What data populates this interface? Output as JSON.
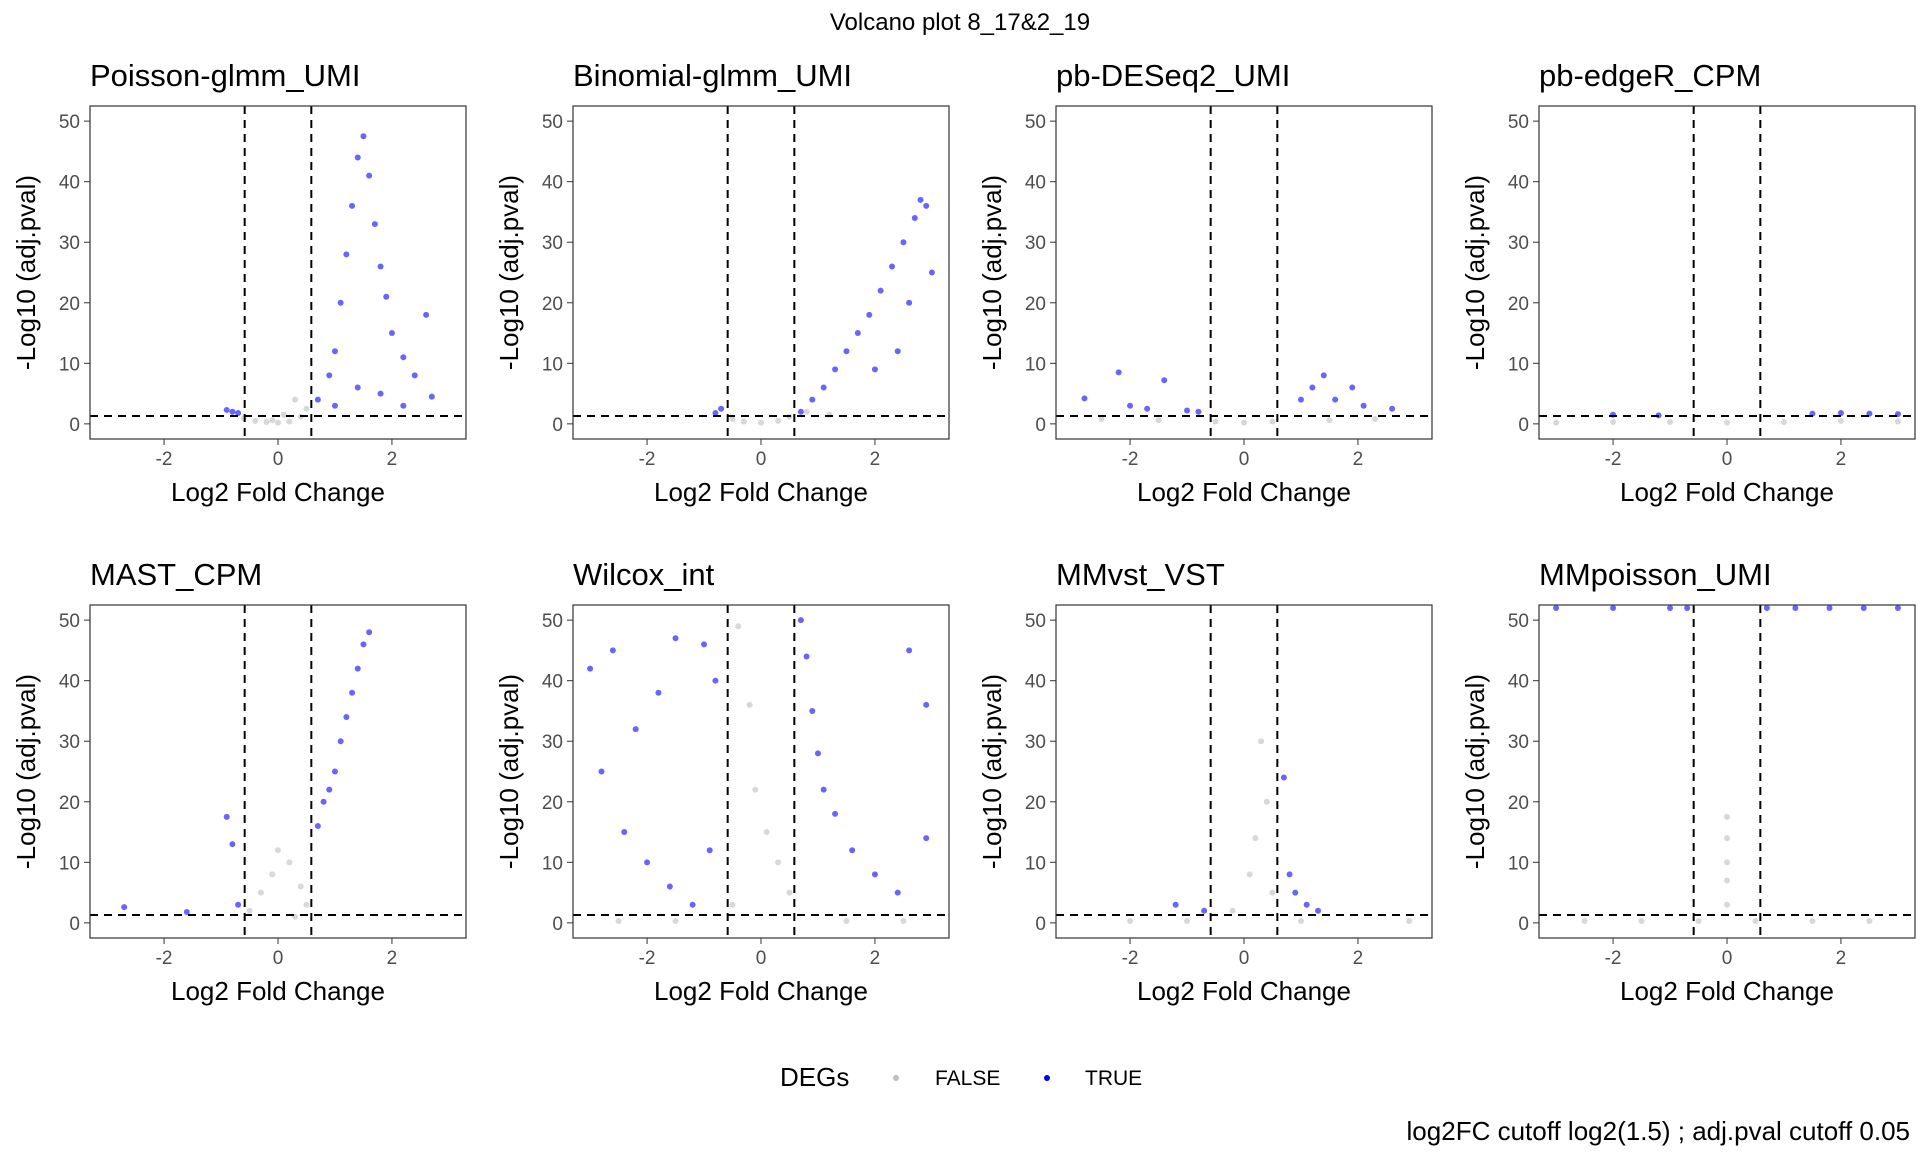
{
  "figure": {
    "title": "Volcano plot 8_17&2_19",
    "caption": "log2FC cutoff  log2(1.5) ; adj.pval cutoff 0.05"
  },
  "legend": {
    "title": "DEGs",
    "entries": [
      {
        "label": "FALSE",
        "color": "#bebebe"
      },
      {
        "label": "TRUE",
        "color": "#0000ff"
      }
    ],
    "placement": "bottom-center"
  },
  "chart_data": [
    {
      "type": "scatter",
      "title": "Poisson-glmm_UMI",
      "xlabel": "Log2 Fold Change",
      "ylabel": "-Log10 (adj.pval)",
      "xlim": [
        -3.3,
        3.3
      ],
      "ylim": [
        -2.5,
        52.5
      ],
      "x_ticks": [
        -2,
        0,
        2
      ],
      "y_ticks": [
        0,
        10,
        20,
        30,
        40,
        50
      ],
      "cutoffs": {
        "log2fc": [
          -0.585,
          0.585
        ],
        "neg_log10_pval": 1.3
      },
      "grid": false,
      "series": [
        {
          "name": "FALSE",
          "color": "#bebebe",
          "points": [
            [
              -0.6,
              0.9
            ],
            [
              -0.4,
              0.5
            ],
            [
              -0.2,
              0.3
            ],
            [
              0,
              0.2
            ],
            [
              0.2,
              0.4
            ],
            [
              0.4,
              1.2
            ],
            [
              0.5,
              2.5
            ],
            [
              0.3,
              4
            ],
            [
              0.1,
              1.5
            ],
            [
              -0.1,
              0.6
            ]
          ]
        },
        {
          "name": "TRUE",
          "color": "#0000ff",
          "points": [
            [
              -0.9,
              2.3
            ],
            [
              -0.8,
              2
            ],
            [
              -0.7,
              1.8
            ],
            [
              0.7,
              4
            ],
            [
              0.9,
              8
            ],
            [
              1.0,
              12
            ],
            [
              1.1,
              20
            ],
            [
              1.2,
              28
            ],
            [
              1.3,
              36
            ],
            [
              1.4,
              44
            ],
            [
              1.5,
              47.5
            ],
            [
              1.6,
              41
            ],
            [
              1.7,
              33
            ],
            [
              1.8,
              26
            ],
            [
              1.9,
              21
            ],
            [
              2.0,
              15
            ],
            [
              2.2,
              11
            ],
            [
              2.4,
              8
            ],
            [
              2.6,
              18
            ],
            [
              2.7,
              4.5
            ],
            [
              1.0,
              3
            ],
            [
              1.4,
              6
            ],
            [
              1.8,
              5
            ],
            [
              2.2,
              3
            ]
          ]
        }
      ]
    },
    {
      "type": "scatter",
      "title": "Binomial-glmm_UMI",
      "xlabel": "Log2 Fold Change",
      "ylabel": "-Log10 (adj.pval)",
      "xlim": [
        -3.3,
        3.3
      ],
      "ylim": [
        -2.5,
        52.5
      ],
      "x_ticks": [
        -2,
        0,
        2
      ],
      "y_ticks": [
        0,
        10,
        20,
        30,
        40,
        50
      ],
      "cutoffs": {
        "log2fc": [
          -0.585,
          0.585
        ],
        "neg_log10_pval": 1.3
      },
      "grid": false,
      "series": [
        {
          "name": "FALSE",
          "color": "#bebebe",
          "points": [
            [
              -0.5,
              0.8
            ],
            [
              -0.3,
              0.4
            ],
            [
              0,
              0.2
            ],
            [
              0.3,
              0.5
            ],
            [
              0.5,
              1.2
            ],
            [
              0.8,
              2
            ],
            [
              1.2,
              1.5
            ]
          ]
        },
        {
          "name": "TRUE",
          "color": "#0000ff",
          "points": [
            [
              -0.7,
              2.5
            ],
            [
              -0.8,
              1.8
            ],
            [
              0.7,
              2
            ],
            [
              0.9,
              4
            ],
            [
              1.1,
              6
            ],
            [
              1.3,
              9
            ],
            [
              1.5,
              12
            ],
            [
              1.7,
              15
            ],
            [
              1.9,
              18
            ],
            [
              2.1,
              22
            ],
            [
              2.3,
              26
            ],
            [
              2.5,
              30
            ],
            [
              2.7,
              34
            ],
            [
              2.8,
              37
            ],
            [
              2.9,
              36
            ],
            [
              3.0,
              25
            ],
            [
              2.0,
              9
            ],
            [
              2.4,
              12
            ],
            [
              2.6,
              20
            ]
          ]
        }
      ]
    },
    {
      "type": "scatter",
      "title": "pb-DESeq2_UMI",
      "xlabel": "Log2 Fold Change",
      "ylabel": "-Log10 (adj.pval)",
      "xlim": [
        -3.3,
        3.3
      ],
      "ylim": [
        -2.5,
        52.5
      ],
      "x_ticks": [
        -2,
        0,
        2
      ],
      "y_ticks": [
        0,
        10,
        20,
        30,
        40,
        50
      ],
      "cutoffs": {
        "log2fc": [
          -0.585,
          0.585
        ],
        "neg_log10_pval": 1.3
      },
      "grid": false,
      "series": [
        {
          "name": "FALSE",
          "color": "#bebebe",
          "points": [
            [
              -2.5,
              0.8
            ],
            [
              -1.5,
              0.6
            ],
            [
              -0.5,
              0.4
            ],
            [
              0,
              0.2
            ],
            [
              0.5,
              0.4
            ],
            [
              1.5,
              0.6
            ],
            [
              2.3,
              0.8
            ]
          ]
        },
        {
          "name": "TRUE",
          "color": "#0000ff",
          "points": [
            [
              -2.8,
              4.2
            ],
            [
              -2.2,
              8.5
            ],
            [
              -2.0,
              3
            ],
            [
              -1.7,
              2.5
            ],
            [
              -1.4,
              7.2
            ],
            [
              -1.0,
              2.2
            ],
            [
              -0.8,
              2
            ],
            [
              1.0,
              4
            ],
            [
              1.2,
              6
            ],
            [
              1.4,
              8
            ],
            [
              1.6,
              4
            ],
            [
              1.9,
              6
            ],
            [
              2.1,
              3
            ],
            [
              2.6,
              2.5
            ]
          ]
        }
      ]
    },
    {
      "type": "scatter",
      "title": "pb-edgeR_CPM",
      "xlabel": "Log2 Fold Change",
      "ylabel": "-Log10 (adj.pval)",
      "xlim": [
        -3.3,
        3.3
      ],
      "ylim": [
        -2.5,
        52.5
      ],
      "x_ticks": [
        -2,
        0,
        2
      ],
      "y_ticks": [
        0,
        10,
        20,
        30,
        40,
        50
      ],
      "cutoffs": {
        "log2fc": [
          -0.585,
          0.585
        ],
        "neg_log10_pval": 1.3
      },
      "grid": false,
      "series": [
        {
          "name": "FALSE",
          "color": "#bebebe",
          "points": [
            [
              -3,
              0.2
            ],
            [
              -2,
              0.3
            ],
            [
              -1,
              0.3
            ],
            [
              0,
              0.2
            ],
            [
              1,
              0.3
            ],
            [
              2,
              0.5
            ],
            [
              3,
              0.4
            ]
          ]
        },
        {
          "name": "TRUE",
          "color": "#0000ff",
          "points": [
            [
              -2.0,
              1.5
            ],
            [
              -1.2,
              1.4
            ],
            [
              1.5,
              1.7
            ],
            [
              2.0,
              1.8
            ],
            [
              2.5,
              1.7
            ],
            [
              3.0,
              1.6
            ]
          ]
        }
      ]
    },
    {
      "type": "scatter",
      "title": "MAST_CPM",
      "xlabel": "Log2 Fold Change",
      "ylabel": "-Log10 (adj.pval)",
      "xlim": [
        -3.3,
        3.3
      ],
      "ylim": [
        -2.5,
        52.5
      ],
      "x_ticks": [
        -2,
        0,
        2
      ],
      "y_ticks": [
        0,
        10,
        20,
        30,
        40,
        50
      ],
      "cutoffs": {
        "log2fc": [
          -0.585,
          0.585
        ],
        "neg_log10_pval": 1.3
      },
      "grid": false,
      "series": [
        {
          "name": "FALSE",
          "color": "#bebebe",
          "points": [
            [
              -0.5,
              2
            ],
            [
              -0.3,
              5
            ],
            [
              -0.1,
              8
            ],
            [
              0,
              12
            ],
            [
              0.2,
              10
            ],
            [
              0.4,
              6
            ],
            [
              0.5,
              3
            ],
            [
              0.3,
              1
            ]
          ]
        },
        {
          "name": "TRUE",
          "color": "#0000ff",
          "points": [
            [
              -2.7,
              2.6
            ],
            [
              -1.6,
              1.8
            ],
            [
              -0.9,
              17.5
            ],
            [
              -0.8,
              13
            ],
            [
              -0.7,
              3
            ],
            [
              0.7,
              16
            ],
            [
              0.8,
              20
            ],
            [
              0.9,
              22
            ],
            [
              1.0,
              25
            ],
            [
              1.1,
              30
            ],
            [
              1.2,
              34
            ],
            [
              1.3,
              38
            ],
            [
              1.4,
              42
            ],
            [
              1.5,
              46
            ],
            [
              1.6,
              48
            ]
          ]
        }
      ]
    },
    {
      "type": "scatter",
      "title": "Wilcox_int",
      "xlabel": "Log2 Fold Change",
      "ylabel": "-Log10 (adj.pval)",
      "xlim": [
        -3.3,
        3.3
      ],
      "ylim": [
        -2.5,
        52.5
      ],
      "x_ticks": [
        -2,
        0,
        2
      ],
      "y_ticks": [
        0,
        10,
        20,
        30,
        40,
        50
      ],
      "cutoffs": {
        "log2fc": [
          -0.585,
          0.585
        ],
        "neg_log10_pval": 1.3
      },
      "grid": false,
      "series": [
        {
          "name": "FALSE",
          "color": "#bebebe",
          "points": [
            [
              -0.4,
              49
            ],
            [
              -0.2,
              36
            ],
            [
              -0.1,
              22
            ],
            [
              0.1,
              15
            ],
            [
              0.3,
              10
            ],
            [
              0.5,
              5
            ],
            [
              -0.5,
              3
            ],
            [
              1.5,
              0.3
            ],
            [
              -1.5,
              0.3
            ],
            [
              2.5,
              0.3
            ],
            [
              -2.5,
              0.3
            ]
          ]
        },
        {
          "name": "TRUE",
          "color": "#0000ff",
          "points": [
            [
              -3.0,
              42
            ],
            [
              -2.6,
              45
            ],
            [
              -2.2,
              32
            ],
            [
              -1.8,
              38
            ],
            [
              -1.5,
              47
            ],
            [
              -1.0,
              46
            ],
            [
              -0.8,
              40
            ],
            [
              -2.8,
              25
            ],
            [
              -2.4,
              15
            ],
            [
              -2.0,
              10
            ],
            [
              -1.6,
              6
            ],
            [
              -1.2,
              3
            ],
            [
              -0.9,
              12
            ],
            [
              0.7,
              50
            ],
            [
              0.8,
              44
            ],
            [
              0.9,
              35
            ],
            [
              1.0,
              28
            ],
            [
              1.1,
              22
            ],
            [
              1.3,
              18
            ],
            [
              1.6,
              12
            ],
            [
              2.0,
              8
            ],
            [
              2.4,
              5
            ],
            [
              2.6,
              45
            ],
            [
              2.9,
              36
            ],
            [
              2.9,
              14
            ]
          ]
        }
      ]
    },
    {
      "type": "scatter",
      "title": "MMvst_VST",
      "xlabel": "Log2 Fold Change",
      "ylabel": "-Log10 (adj.pval)",
      "xlim": [
        -3.3,
        3.3
      ],
      "ylim": [
        -2.5,
        52.5
      ],
      "x_ticks": [
        -2,
        0,
        2
      ],
      "y_ticks": [
        0,
        10,
        20,
        30,
        40,
        50
      ],
      "cutoffs": {
        "log2fc": [
          -0.585,
          0.585
        ],
        "neg_log10_pval": 1.3
      },
      "grid": false,
      "series": [
        {
          "name": "FALSE",
          "color": "#bebebe",
          "points": [
            [
              0.3,
              30
            ],
            [
              0.4,
              20
            ],
            [
              0.2,
              14
            ],
            [
              0.1,
              8
            ],
            [
              0.5,
              5
            ],
            [
              -0.2,
              2
            ],
            [
              -1.0,
              0.3
            ],
            [
              1.0,
              0.3
            ],
            [
              2.9,
              0.3
            ],
            [
              -2.0,
              0.3
            ]
          ]
        },
        {
          "name": "TRUE",
          "color": "#0000ff",
          "points": [
            [
              -1.2,
              3
            ],
            [
              -0.7,
              2
            ],
            [
              0.7,
              24
            ],
            [
              0.8,
              8
            ],
            [
              0.9,
              5
            ],
            [
              1.1,
              3
            ],
            [
              1.3,
              2
            ]
          ]
        }
      ]
    },
    {
      "type": "scatter",
      "title": "MMpoisson_UMI",
      "xlabel": "Log2 Fold Change",
      "ylabel": "-Log10 (adj.pval)",
      "xlim": [
        -3.3,
        3.3
      ],
      "ylim": [
        -2.5,
        52.5
      ],
      "x_ticks": [
        -2,
        0,
        2
      ],
      "y_ticks": [
        0,
        10,
        20,
        30,
        40,
        50
      ],
      "cutoffs": {
        "log2fc": [
          -0.585,
          0.585
        ],
        "neg_log10_pval": 1.3
      },
      "grid": false,
      "series": [
        {
          "name": "FALSE",
          "color": "#bebebe",
          "points": [
            [
              0,
              17.5
            ],
            [
              0,
              14
            ],
            [
              0,
              10
            ],
            [
              0,
              7
            ],
            [
              0,
              3
            ],
            [
              -2.5,
              0.3
            ],
            [
              -1.5,
              0.3
            ],
            [
              -0.5,
              0.3
            ],
            [
              0.5,
              0.3
            ],
            [
              1.5,
              0.3
            ],
            [
              2.5,
              0.3
            ]
          ]
        },
        {
          "name": "TRUE",
          "color": "#0000ff",
          "points": [
            [
              -3.0,
              52
            ],
            [
              -2.0,
              52
            ],
            [
              -1.0,
              52
            ],
            [
              -0.7,
              52
            ],
            [
              0.7,
              52
            ],
            [
              1.2,
              52
            ],
            [
              1.8,
              52
            ],
            [
              2.4,
              52
            ],
            [
              3.0,
              52
            ]
          ]
        }
      ]
    }
  ]
}
